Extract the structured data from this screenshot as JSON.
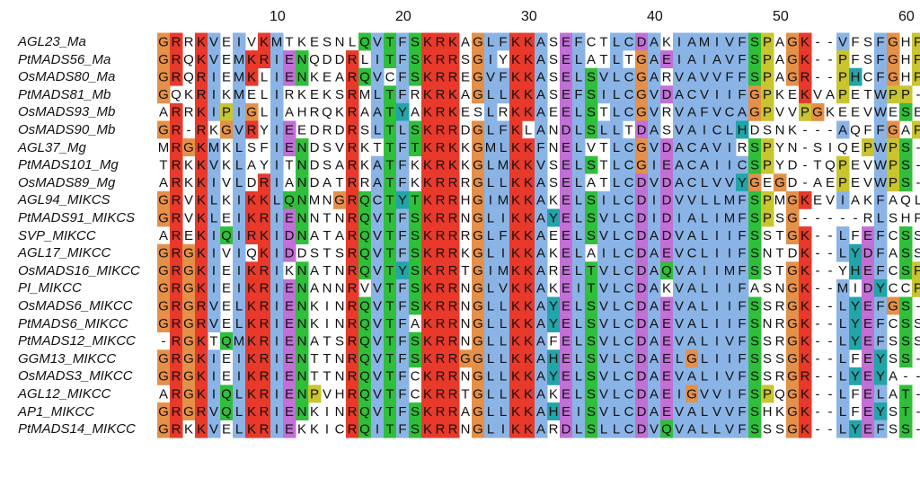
{
  "alignment": {
    "ruler_ticks": [
      "10",
      "20",
      "30",
      "40",
      "50",
      "60"
    ],
    "colors": {
      "red": "#e8392b",
      "blue": "#8ab4e6",
      "green": "#2fbf3a",
      "orange": "#e59048",
      "magenta": "#c26fd6",
      "cyan": "#22a5a8",
      "yellow": "#c9c52f",
      "pink": "#ea8c86"
    },
    "sequences": [
      {
        "name": "AGL23_Ma",
        "seq": "GRRKVEIVKMTKESNLQVTFSKRKAGLFKKASEFCTLCDAKIAMIVFSPAGK--VFSFGHP-"
      },
      {
        "name": "PtMADS56_Ma",
        "seq": "GRQKVEMKRIENQDDRLITFSKRRSGIYKKASELATLTGAEIAIAVFSPAGK--PFSFGHP-"
      },
      {
        "name": "OsMADS80_Ma",
        "seq": "GRQRIEMKLIENKEARQVCFSKRREGVFKKASELSVLCGARVAVVFFSPAGR--PHCFGHP-"
      },
      {
        "name": "PtMADS81_Mb",
        "seq": "GQKRIKMELIRKEKSRMLTFRKRKAGLLKKASEFSILCGVDACVIIFGPKEKVAPETWPP--"
      },
      {
        "name": "OsMADS93_Mb",
        "seq": "ARRKIPIGLIAHRQKRAATYAKRKESLRKKAEELSTLCGVRVAFVCAGPVVPGKEEVWESE-"
      },
      {
        "name": "OsMADS90_Mb",
        "seq": "GR-RKGVRYIEEDRDRSLTLSKRRDGLFKLANDLSLLTDASVAICLHDSNK---AQFFGAPS"
      },
      {
        "name": "AGL37_Mg",
        "seq": "MRGKMKLSFIENDSVRKTTFTKRKKGMLKKFNELVTLCGVDACAVIRSPYN-SIQEPWPS--"
      },
      {
        "name": "PtMADS101_Mg",
        "seq": "TRKKVKLAYITNDSARKATFKKRKKGLMKKVSELSTLCGIEACAIICSPYD-TQPEVWPS--"
      },
      {
        "name": "OsMADS89_Mg",
        "seq": "ARKKIVLDRIANDATRRATFKKRRRGLLKKASELATLCDVDACLVVYGEGD-AEPEVWPS--"
      },
      {
        "name": "AGL94_MIKCS",
        "seq": "GRVKLKIKKLQNMNGRQCTYTKRRHGIMKKAKELSILCDIDVVLLMFSPMGKEVIAKFAQLS"
      },
      {
        "name": "PtMADS91_MIKCS",
        "seq": "GRVKLEIKRIENNTNRQVTFSKRRNGLIKKAYELSVLCDIDIALIMFSPSG-----RLSHFS"
      },
      {
        "name": "SVP_MIKCC",
        "seq": "AREKIQIRKIDNATARQVTFSKRRRGLFKKAEELSVLCDADVALIIFSSTGK--LFEFCSS-"
      },
      {
        "name": "AGL17_MIKCC",
        "seq": "GRGKIVIQKIDDSTSRQVTFSKRRKGLIKKAKELAILCDAEVCLIIFSNTDK--LYDFASS-"
      },
      {
        "name": "OsMADS16_MIKCC",
        "seq": "GRGKIEIKRIKNATNRQVTYSKRRTGIMKKARELTVLCDAQVAIIMFSSTGK--YHEFCSP-"
      },
      {
        "name": "PI_MIKCC",
        "seq": "GRGKIEIKRIENANNRVVTFSKRRNGLVKKAKEITVLCDAKVALIIFASNGK--MIDYCCP-"
      },
      {
        "name": "OsMADS6_MIKCC",
        "seq": "GRGRVELKRIENKINRQVTFSKRRNGLLKKAYELSVLCDAEVALIIFSSRGK--LYEFGS--"
      },
      {
        "name": "PtMADS6_MIKCC",
        "seq": "GRGRVELKRIENKINRQVTFAKRRNGLLKKAYELSVLCDAEVALIIFSNRGK--LYEFCSS-"
      },
      {
        "name": "PtMADS12_MIKCC",
        "seq": "-RGKTQMKRIENATSRQVTFSKRRNGLLKKAFELSVLCDAEVALIVFSSRGK--LYEFSSS-"
      },
      {
        "name": "GGM13_MIKCC",
        "seq": "GRGKIEIKRIENTTNRQVTFSKRRGGLLKKAHELSVLCDAELGLIIFSSSGK--LFEYSS--"
      },
      {
        "name": "OsMADS3_MIKCC",
        "seq": "GRGKIEIKRIENTTNRQVTFCKRRNGLLKKAYELSVLCDAEVALIVFSSRGR--LYEYA---"
      },
      {
        "name": "AGL12_MIKCC",
        "seq": "ARGKIQLKRIENPVHRQVTFCKRRTGLLKKAKELSVLCDAEIGVVIFSPQGK--LFELAT--"
      },
      {
        "name": "AP1_MIKCC",
        "seq": "GRGRVQLKRIENKINRQVTFSKRRAGLLKKAHEISVLCDAEVALVVFSHKGK--LFEYST--"
      },
      {
        "name": "PtMADS14_MIKCC",
        "seq": "GRKKVELKRIEKKICRQITFSKRRNGLIKKARDLSLLCDVQVALLVFSSSGK--LYEFSS--"
      }
    ]
  }
}
